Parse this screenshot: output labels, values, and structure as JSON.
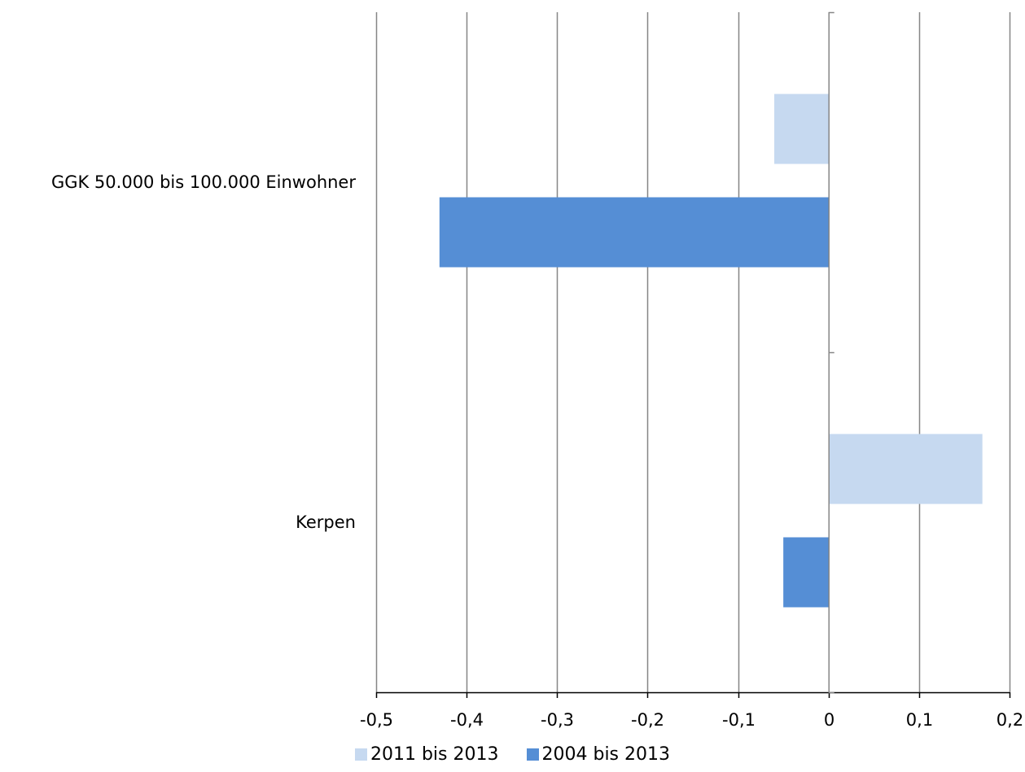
{
  "chart_data": {
    "type": "bar",
    "orientation": "horizontal",
    "categories": [
      "GGK 50.000 bis 100.000 Einwohner",
      "Kerpen"
    ],
    "series": [
      {
        "name": "2011 bis 2013",
        "values": [
          -0.06,
          0.17
        ],
        "color": "#c6d9f0"
      },
      {
        "name": "2004 bis 2013",
        "values": [
          -0.43,
          -0.05
        ],
        "color": "#558ed5"
      }
    ],
    "xlim": [
      -0.5,
      0.2
    ],
    "xticks": [
      -0.5,
      -0.4,
      -0.3,
      -0.2,
      -0.1,
      0,
      0.1,
      0.2
    ],
    "xtick_labels": [
      "-0,5",
      "-0,4",
      "-0,3",
      "-0,2",
      "-0,1",
      "0",
      "0,1",
      "0,2"
    ],
    "grid": true,
    "gridline_color": "#868686",
    "legend_position": "bottom",
    "title": "",
    "xlabel": "",
    "ylabel": ""
  }
}
